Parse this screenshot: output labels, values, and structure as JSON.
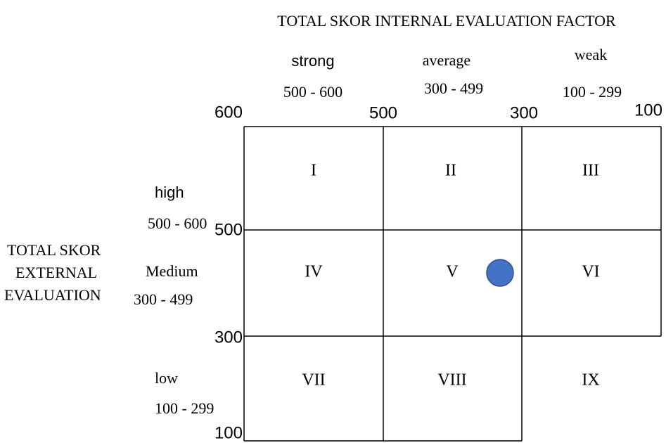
{
  "title": "TOTAL SKOR INTERNAL EVALUATION FACTOR",
  "columns": [
    {
      "label": "strong",
      "range": "500 - 600"
    },
    {
      "label": "average",
      "range": "300 - 499"
    },
    {
      "label": "weak",
      "range": "100 - 299"
    }
  ],
  "x_axis_numbers": [
    "600",
    "500",
    "300",
    "100"
  ],
  "rows": [
    {
      "label": "high",
      "range": "500 - 600"
    },
    {
      "label": "Medium",
      "range": "300 - 499"
    },
    {
      "label": "low",
      "range": "100 - 299"
    }
  ],
  "y_axis_numbers": [
    "500",
    "300",
    "100"
  ],
  "y_axis_title": [
    "TOTAL SKOR",
    "EXTERNAL",
    "EVALUATION"
  ],
  "cells": [
    "I",
    "II",
    "III",
    "IV",
    "V",
    "VI",
    "VII",
    "VIII",
    "IX"
  ]
}
